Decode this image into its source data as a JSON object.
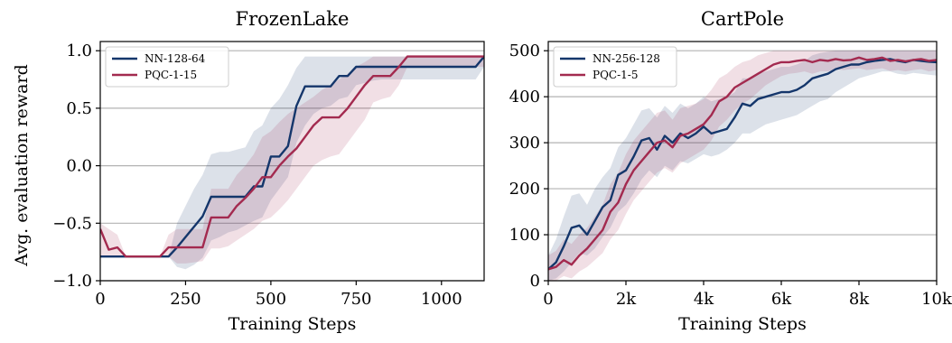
{
  "figure": {
    "ylabel": "Avg. evaluation reward"
  },
  "chart_data": [
    {
      "type": "line",
      "title": "FrozenLake",
      "xlabel": "Training Steps",
      "ylabel": "Avg. evaluation reward",
      "xlim": [
        0,
        1125
      ],
      "ylim": [
        -1.0,
        1.08
      ],
      "xticks": [
        0,
        250,
        500,
        750,
        1000
      ],
      "xtick_labels": [
        "0",
        "250",
        "500",
        "750",
        "1000"
      ],
      "yticks": [
        -1.0,
        -0.5,
        0.0,
        0.5,
        1.0
      ],
      "ytick_labels": [
        "−1.0",
        "−0.5",
        "0.0",
        "0.5",
        "1.0"
      ],
      "grid": "horizontal",
      "legend_position": "top-left",
      "series": [
        {
          "name": "NN-128-64",
          "color": "#14366b",
          "x": [
            0,
            25,
            50,
            75,
            100,
            125,
            150,
            175,
            200,
            225,
            250,
            275,
            300,
            325,
            350,
            375,
            400,
            425,
            450,
            475,
            500,
            525,
            550,
            575,
            600,
            625,
            650,
            675,
            700,
            725,
            750,
            775,
            800,
            825,
            850,
            875,
            900,
            925,
            950,
            975,
            1000,
            1025,
            1050,
            1075,
            1100,
            1125
          ],
          "y": [
            -0.79,
            -0.79,
            -0.79,
            -0.79,
            -0.79,
            -0.79,
            -0.79,
            -0.79,
            -0.79,
            -0.71,
            -0.62,
            -0.53,
            -0.44,
            -0.27,
            -0.27,
            -0.27,
            -0.27,
            -0.27,
            -0.18,
            -0.18,
            0.08,
            0.08,
            0.17,
            0.52,
            0.69,
            0.69,
            0.69,
            0.69,
            0.78,
            0.78,
            0.86,
            0.86,
            0.86,
            0.86,
            0.86,
            0.86,
            0.86,
            0.86,
            0.86,
            0.86,
            0.86,
            0.86,
            0.86,
            0.86,
            0.86,
            0.95
          ],
          "band_low": [
            -0.79,
            -0.79,
            -0.79,
            -0.79,
            -0.79,
            -0.79,
            -0.79,
            -0.79,
            -0.79,
            -0.88,
            -0.9,
            -0.86,
            -0.8,
            -0.65,
            -0.62,
            -0.58,
            -0.56,
            -0.52,
            -0.48,
            -0.45,
            -0.3,
            -0.2,
            -0.1,
            0.2,
            0.35,
            0.45,
            0.5,
            0.52,
            0.58,
            0.6,
            0.7,
            0.72,
            0.74,
            0.75,
            0.75,
            0.75,
            0.75,
            0.75,
            0.75,
            0.75,
            0.75,
            0.75,
            0.75,
            0.75,
            0.75,
            0.86
          ],
          "band_high": [
            -0.79,
            -0.79,
            -0.79,
            -0.79,
            -0.79,
            -0.79,
            -0.79,
            -0.79,
            -0.79,
            -0.5,
            -0.35,
            -0.2,
            -0.08,
            0.1,
            0.12,
            0.12,
            0.14,
            0.16,
            0.3,
            0.35,
            0.5,
            0.58,
            0.7,
            0.85,
            0.95,
            0.95,
            0.95,
            0.95,
            0.95,
            0.95,
            0.95,
            0.95,
            0.95,
            0.95,
            0.95,
            0.95,
            0.95,
            0.95,
            0.95,
            0.95,
            0.95,
            0.95,
            0.95,
            0.95,
            0.95,
            0.95
          ]
        },
        {
          "name": "PQC-1-15",
          "color": "#a32a4f",
          "x": [
            0,
            25,
            50,
            75,
            100,
            125,
            150,
            175,
            200,
            225,
            250,
            275,
            300,
            325,
            350,
            375,
            400,
            425,
            450,
            475,
            500,
            525,
            550,
            575,
            600,
            625,
            650,
            675,
            700,
            725,
            750,
            775,
            800,
            825,
            850,
            875,
            900,
            925,
            950,
            975,
            1000,
            1025,
            1050,
            1075,
            1100,
            1125
          ],
          "y": [
            -0.55,
            -0.73,
            -0.71,
            -0.79,
            -0.79,
            -0.79,
            -0.79,
            -0.79,
            -0.71,
            -0.71,
            -0.71,
            -0.71,
            -0.71,
            -0.45,
            -0.45,
            -0.45,
            -0.35,
            -0.28,
            -0.2,
            -0.1,
            -0.1,
            0.0,
            0.08,
            0.15,
            0.25,
            0.35,
            0.42,
            0.42,
            0.42,
            0.5,
            0.6,
            0.7,
            0.78,
            0.78,
            0.78,
            0.86,
            0.95,
            0.95,
            0.95,
            0.95,
            0.95,
            0.95,
            0.95,
            0.95,
            0.95,
            0.95
          ],
          "band_low": [
            -0.79,
            -0.79,
            -0.79,
            -0.79,
            -0.79,
            -0.79,
            -0.79,
            -0.79,
            -0.79,
            -0.85,
            -0.85,
            -0.84,
            -0.83,
            -0.72,
            -0.72,
            -0.7,
            -0.65,
            -0.6,
            -0.55,
            -0.48,
            -0.45,
            -0.38,
            -0.3,
            -0.2,
            -0.1,
            0.0,
            0.05,
            0.08,
            0.1,
            0.2,
            0.3,
            0.4,
            0.55,
            0.58,
            0.6,
            0.7,
            0.86,
            0.86,
            0.86,
            0.86,
            0.86,
            0.86,
            0.86,
            0.86,
            0.86,
            0.86
          ],
          "band_high": [
            -0.5,
            -0.55,
            -0.6,
            -0.79,
            -0.79,
            -0.79,
            -0.79,
            -0.79,
            -0.6,
            -0.55,
            -0.55,
            -0.55,
            -0.55,
            -0.2,
            -0.2,
            -0.2,
            -0.08,
            0.0,
            0.1,
            0.25,
            0.3,
            0.38,
            0.45,
            0.5,
            0.55,
            0.6,
            0.66,
            0.7,
            0.75,
            0.8,
            0.86,
            0.9,
            0.95,
            0.95,
            0.95,
            0.95,
            0.95,
            0.95,
            0.95,
            0.95,
            0.95,
            0.95,
            0.95,
            0.95,
            0.95,
            0.95
          ]
        }
      ]
    },
    {
      "type": "line",
      "title": "CartPole",
      "xlabel": "Training Steps",
      "ylabel": "",
      "xlim": [
        0,
        10000
      ],
      "ylim": [
        0,
        520
      ],
      "xticks": [
        0,
        2000,
        4000,
        6000,
        8000,
        10000
      ],
      "xtick_labels": [
        "0",
        "2k",
        "4k",
        "6k",
        "8k",
        "10k"
      ],
      "yticks": [
        0,
        100,
        200,
        300,
        400,
        500
      ],
      "ytick_labels": [
        "0",
        "100",
        "200",
        "300",
        "400",
        "500"
      ],
      "grid": "horizontal",
      "legend_position": "top-left",
      "series": [
        {
          "name": "NN-256-128",
          "color": "#14366b",
          "x": [
            0,
            200,
            400,
            600,
            800,
            1000,
            1200,
            1400,
            1600,
            1800,
            2000,
            2200,
            2400,
            2600,
            2800,
            3000,
            3200,
            3400,
            3600,
            3800,
            4000,
            4200,
            4400,
            4600,
            4800,
            5000,
            5200,
            5400,
            5600,
            5800,
            6000,
            6200,
            6400,
            6600,
            6800,
            7000,
            7200,
            7400,
            7600,
            7800,
            8000,
            8200,
            8400,
            8600,
            8800,
            9000,
            9200,
            9400,
            9600,
            9800,
            10000
          ],
          "y": [
            25,
            40,
            75,
            115,
            120,
            100,
            130,
            160,
            175,
            230,
            240,
            270,
            305,
            310,
            285,
            315,
            300,
            320,
            310,
            320,
            335,
            320,
            325,
            330,
            355,
            385,
            380,
            395,
            400,
            405,
            410,
            410,
            415,
            425,
            440,
            445,
            450,
            460,
            465,
            470,
            470,
            475,
            478,
            480,
            482,
            478,
            475,
            480,
            478,
            476,
            475
          ],
          "band_low": [
            0,
            5,
            20,
            40,
            60,
            55,
            70,
            95,
            115,
            150,
            165,
            190,
            220,
            240,
            225,
            250,
            240,
            260,
            255,
            265,
            275,
            270,
            275,
            285,
            300,
            320,
            320,
            330,
            340,
            345,
            350,
            355,
            360,
            370,
            380,
            390,
            395,
            410,
            420,
            430,
            440,
            445,
            450,
            455,
            455,
            450,
            448,
            452,
            450,
            448,
            446
          ],
          "band_high": [
            55,
            90,
            140,
            185,
            190,
            165,
            200,
            225,
            245,
            290,
            310,
            340,
            370,
            375,
            355,
            380,
            365,
            385,
            375,
            385,
            400,
            390,
            395,
            400,
            410,
            440,
            440,
            450,
            455,
            460,
            465,
            465,
            470,
            478,
            490,
            495,
            498,
            500,
            500,
            500,
            500,
            500,
            500,
            500,
            500,
            500,
            500,
            500,
            500,
            500,
            500
          ]
        },
        {
          "name": "PQC-1-5",
          "color": "#a32a4f",
          "x": [
            0,
            200,
            400,
            600,
            800,
            1000,
            1200,
            1400,
            1600,
            1800,
            2000,
            2200,
            2400,
            2600,
            2800,
            3000,
            3200,
            3400,
            3600,
            3800,
            4000,
            4200,
            4400,
            4600,
            4800,
            5000,
            5200,
            5400,
            5600,
            5800,
            6000,
            6200,
            6400,
            6600,
            6800,
            7000,
            7200,
            7400,
            7600,
            7800,
            8000,
            8200,
            8400,
            8600,
            8800,
            9000,
            9200,
            9400,
            9600,
            9800,
            10000
          ],
          "y": [
            25,
            30,
            45,
            35,
            55,
            70,
            90,
            110,
            150,
            170,
            210,
            240,
            260,
            280,
            300,
            305,
            290,
            315,
            320,
            330,
            340,
            360,
            390,
            400,
            420,
            430,
            440,
            450,
            460,
            470,
            475,
            475,
            478,
            480,
            475,
            480,
            478,
            482,
            479,
            480,
            485,
            480,
            482,
            485,
            478,
            480,
            477,
            480,
            482,
            478,
            480
          ],
          "band_low": [
            0,
            0,
            10,
            5,
            20,
            30,
            45,
            60,
            90,
            110,
            145,
            175,
            195,
            215,
            235,
            245,
            235,
            255,
            265,
            275,
            285,
            305,
            335,
            350,
            370,
            385,
            395,
            410,
            425,
            435,
            445,
            450,
            452,
            455,
            450,
            455,
            455,
            460,
            458,
            460,
            462,
            458,
            460,
            462,
            456,
            458,
            455,
            458,
            460,
            455,
            458
          ],
          "band_high": [
            55,
            65,
            90,
            80,
            100,
            115,
            140,
            165,
            210,
            235,
            275,
            305,
            325,
            345,
            365,
            370,
            350,
            375,
            380,
            385,
            395,
            415,
            440,
            450,
            465,
            475,
            480,
            490,
            495,
            500,
            500,
            500,
            500,
            500,
            500,
            500,
            500,
            500,
            500,
            500,
            500,
            500,
            500,
            500,
            500,
            500,
            500,
            500,
            500,
            500,
            500
          ]
        }
      ]
    }
  ]
}
